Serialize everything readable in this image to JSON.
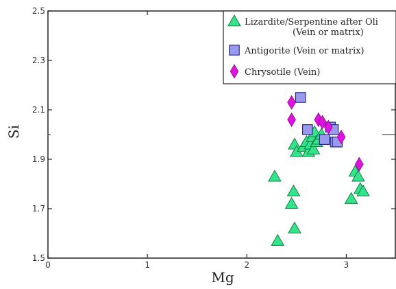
{
  "chart_data": {
    "type": "scatter",
    "title": "",
    "xlabel": "Mg",
    "ylabel": "Si",
    "xlim": [
      0,
      3.5
    ],
    "ylim": [
      1.5,
      2.5
    ],
    "x_ticks": [
      "0",
      "1",
      "2",
      "3"
    ],
    "y_ticks": [
      "1.5",
      "1.7",
      "1.9",
      "2.1",
      "2.3",
      "2.5"
    ],
    "grid": false,
    "legend_position": "top-right",
    "series": [
      {
        "name": "Lizardite/Serpentine after Oli",
        "name_line2": "(Vein or matrix)",
        "marker": "triangle",
        "color": "#33e58a",
        "points": [
          [
            2.28,
            1.83
          ],
          [
            2.31,
            1.57
          ],
          [
            2.45,
            1.72
          ],
          [
            2.47,
            1.77
          ],
          [
            2.48,
            1.62
          ],
          [
            2.48,
            1.96
          ],
          [
            2.5,
            1.93
          ],
          [
            2.57,
            1.95
          ],
          [
            2.6,
            1.97
          ],
          [
            2.62,
            1.93
          ],
          [
            2.64,
            1.96
          ],
          [
            2.66,
            1.99
          ],
          [
            2.67,
            1.94
          ],
          [
            2.68,
            2.01
          ],
          [
            2.7,
            1.97
          ],
          [
            2.72,
            1.98
          ],
          [
            2.75,
            2.0
          ],
          [
            3.05,
            1.74
          ],
          [
            3.09,
            1.85
          ],
          [
            3.12,
            1.83
          ],
          [
            3.14,
            1.78
          ],
          [
            3.17,
            1.77
          ]
        ]
      },
      {
        "name": "Antigorite (Vein or matrix)",
        "marker": "square",
        "color": "#9999ee",
        "points": [
          [
            2.54,
            2.15
          ],
          [
            2.61,
            2.02
          ],
          [
            2.78,
            1.98
          ],
          [
            2.84,
            2.03
          ],
          [
            2.87,
            2.02
          ],
          [
            2.89,
            1.97
          ],
          [
            2.91,
            1.97
          ]
        ]
      },
      {
        "name": "Chrysotile (Vein)",
        "marker": "diamond",
        "color": "#e012e0",
        "points": [
          [
            2.45,
            2.13
          ],
          [
            2.45,
            2.06
          ],
          [
            2.72,
            2.06
          ],
          [
            2.76,
            2.05
          ],
          [
            2.82,
            2.03
          ],
          [
            2.95,
            1.99
          ],
          [
            3.13,
            1.88
          ]
        ]
      }
    ]
  }
}
